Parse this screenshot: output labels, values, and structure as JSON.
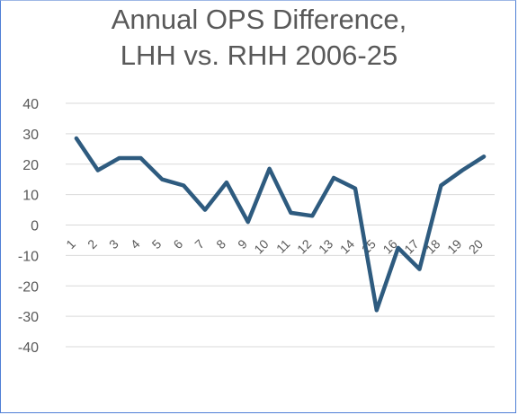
{
  "chart_data": {
    "type": "line",
    "title_lines": [
      "Annual OPS Difference,",
      "LHH vs. RHH 2006-25"
    ],
    "categories": [
      "1",
      "2",
      "3",
      "4",
      "5",
      "6",
      "7",
      "8",
      "9",
      "10",
      "11",
      "12",
      "13",
      "14",
      "15",
      "16",
      "17",
      "18",
      "19",
      "20"
    ],
    "series": [
      {
        "values": [
          28.5,
          18,
          22,
          22,
          15,
          13,
          5,
          14,
          1,
          18.5,
          4,
          3,
          15.5,
          12,
          -28,
          -7.5,
          -14.5,
          13,
          18,
          22.5
        ]
      }
    ],
    "yticks": [
      40,
      30,
      20,
      10,
      0,
      -10,
      -20,
      -30,
      -40
    ],
    "ylim": [
      -40,
      40
    ],
    "grid": true,
    "line_color": "#2e5b7f"
  }
}
